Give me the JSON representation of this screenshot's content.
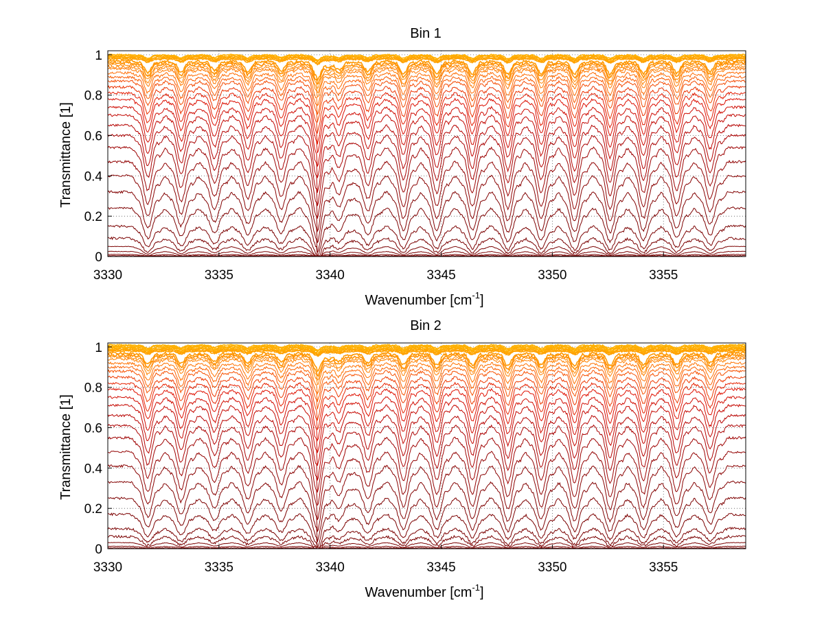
{
  "chart_data": [
    {
      "type": "line",
      "title": "Bin 1",
      "xlabel": "Wavenumber [cm",
      "xlabel_sup": "-1",
      "xlabel_end": "]",
      "ylabel": "Transmittance [1]",
      "xlim": [
        3330,
        3358.7
      ],
      "ylim": [
        0,
        1.02
      ],
      "grid": "dotted",
      "x_ticks": [
        "3330",
        "3335",
        "3340",
        "3345",
        "3350",
        "3355"
      ],
      "y_ticks": [
        "0",
        "0.2",
        "0.4",
        "0.6",
        "0.8",
        "1"
      ],
      "line_centers": [
        3331.8,
        3333.3,
        3334.8,
        3336.3,
        3337.8,
        3339.4,
        3340.4,
        3341.7,
        3343.3,
        3344.8,
        3346.4,
        3348.0,
        3349.5,
        3351.0,
        3352.6,
        3354.1,
        3355.6,
        3357.1
      ],
      "line_strengths": [
        0.85,
        0.8,
        0.7,
        0.75,
        0.7,
        1.1,
        0.55,
        0.75,
        0.9,
        0.9,
        0.9,
        0.95,
        0.9,
        0.95,
        0.95,
        0.9,
        0.85,
        0.75
      ],
      "curve_levels": [
        1.0,
        0.995,
        0.99,
        0.985,
        0.98,
        0.97,
        0.96,
        0.95,
        0.94,
        0.93,
        0.91,
        0.89,
        0.87,
        0.84,
        0.81,
        0.78,
        0.74,
        0.7,
        0.65,
        0.6,
        0.54,
        0.47,
        0.4,
        0.32,
        0.24,
        0.15,
        0.09,
        0.05,
        0.025,
        0.01,
        0.004
      ]
    },
    {
      "type": "line",
      "title": "Bin 2",
      "xlabel": "Wavenumber [cm",
      "xlabel_sup": "-1",
      "xlabel_end": "]",
      "ylabel": "Transmittance [1]",
      "xlim": [
        3330,
        3358.7
      ],
      "ylim": [
        0,
        1.02
      ],
      "grid": "dotted",
      "x_ticks": [
        "3330",
        "3335",
        "3340",
        "3345",
        "3350",
        "3355"
      ],
      "y_ticks": [
        "0",
        "0.2",
        "0.4",
        "0.6",
        "0.8",
        "1"
      ],
      "line_centers": [
        3331.8,
        3333.3,
        3334.8,
        3336.3,
        3337.8,
        3339.4,
        3340.4,
        3341.7,
        3343.3,
        3344.8,
        3346.4,
        3348.0,
        3349.5,
        3351.0,
        3352.6,
        3354.1,
        3355.6,
        3357.1
      ],
      "line_strengths": [
        0.8,
        0.75,
        0.6,
        0.7,
        0.65,
        1.05,
        0.5,
        0.7,
        0.85,
        0.85,
        0.85,
        0.9,
        0.85,
        0.9,
        0.9,
        0.85,
        0.8,
        0.7
      ],
      "curve_levels": [
        1.01,
        1.005,
        1.0,
        0.995,
        0.99,
        0.985,
        0.98,
        0.97,
        0.96,
        0.95,
        0.94,
        0.92,
        0.9,
        0.88,
        0.85,
        0.82,
        0.79,
        0.75,
        0.71,
        0.66,
        0.61,
        0.55,
        0.48,
        0.41,
        0.33,
        0.25,
        0.17,
        0.1,
        0.06,
        0.03,
        0.012,
        0.004
      ]
    }
  ],
  "colors": {
    "darkest": "#7a0000",
    "dark": "#b00000",
    "mid": "#e01000",
    "light": "#ff6a00",
    "lightest": "#ffb000"
  }
}
